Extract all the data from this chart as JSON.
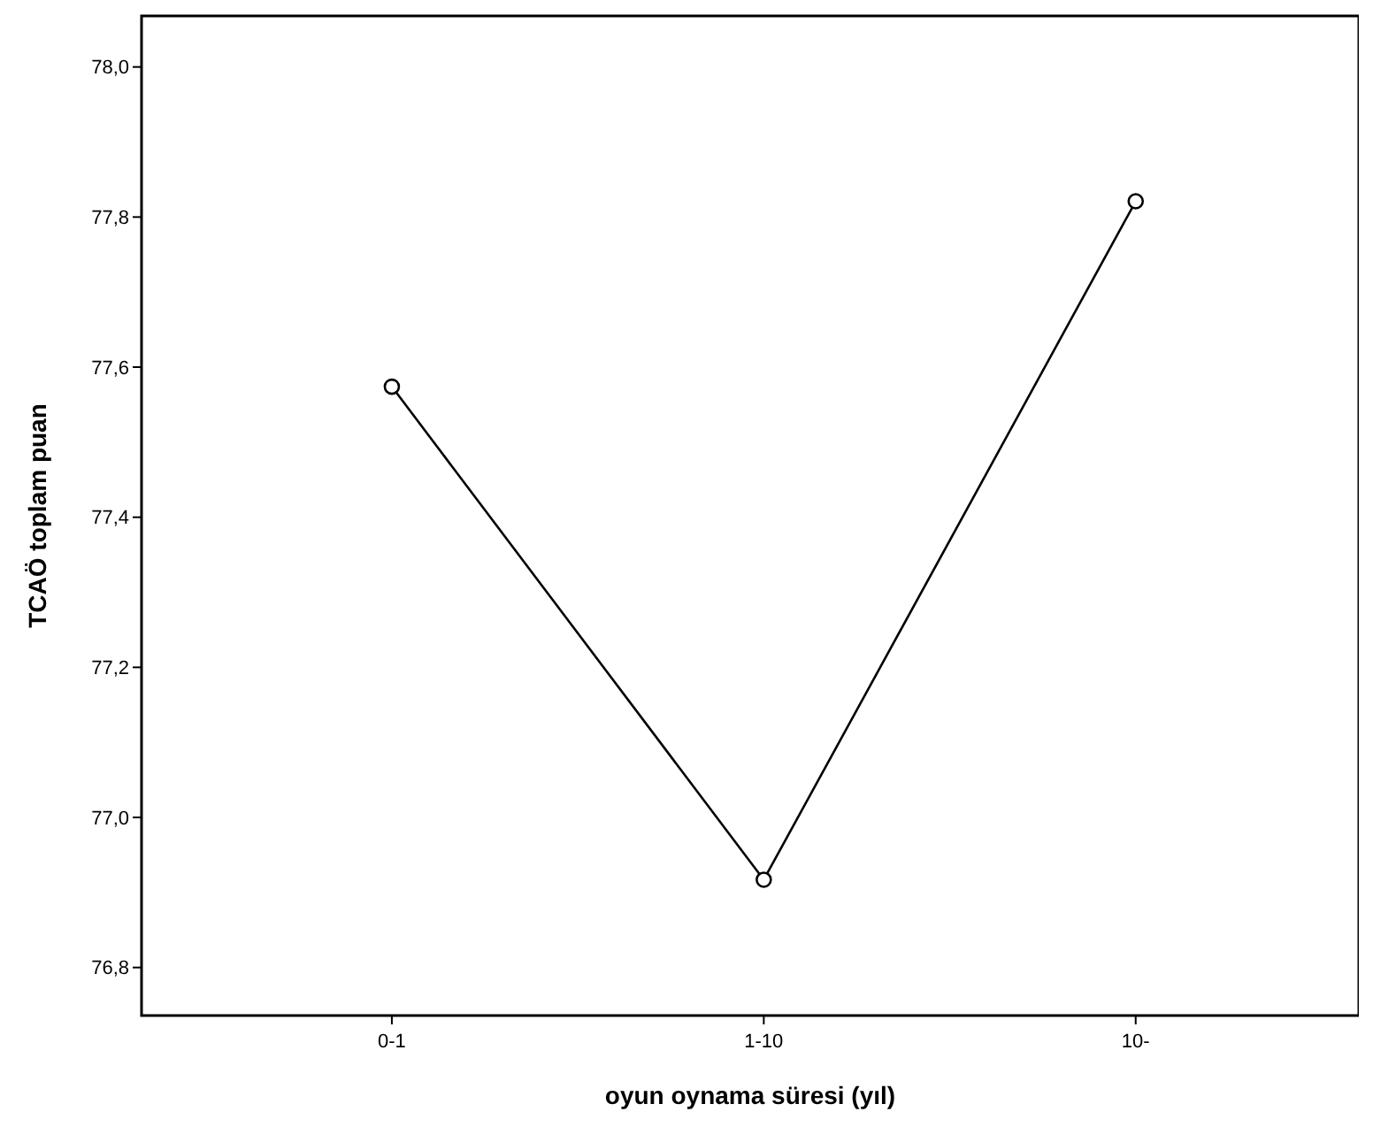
{
  "chart_data": {
    "type": "line",
    "xlabel": "oyun oynama süresi (yıl)",
    "ylabel": "TCAÖ toplam puan",
    "categories": [
      "0-1",
      "1-10",
      "10-"
    ],
    "series": [
      {
        "color": "#000000",
        "values": [
          77.574,
          76.917,
          77.821
        ]
      }
    ],
    "ylim": [
      76.736,
      78.068
    ],
    "yticks": [
      {
        "value": 76.8,
        "label": "76,8"
      },
      {
        "value": 77.0,
        "label": "77,0"
      },
      {
        "value": 77.2,
        "label": "77,2"
      },
      {
        "value": 77.4,
        "label": "77,4"
      },
      {
        "value": 77.6,
        "label": "77,6"
      },
      {
        "value": 77.8,
        "label": "77,8"
      },
      {
        "value": 78.0,
        "label": "78,0"
      }
    ],
    "marker": "circle",
    "line_style": "solid"
  }
}
